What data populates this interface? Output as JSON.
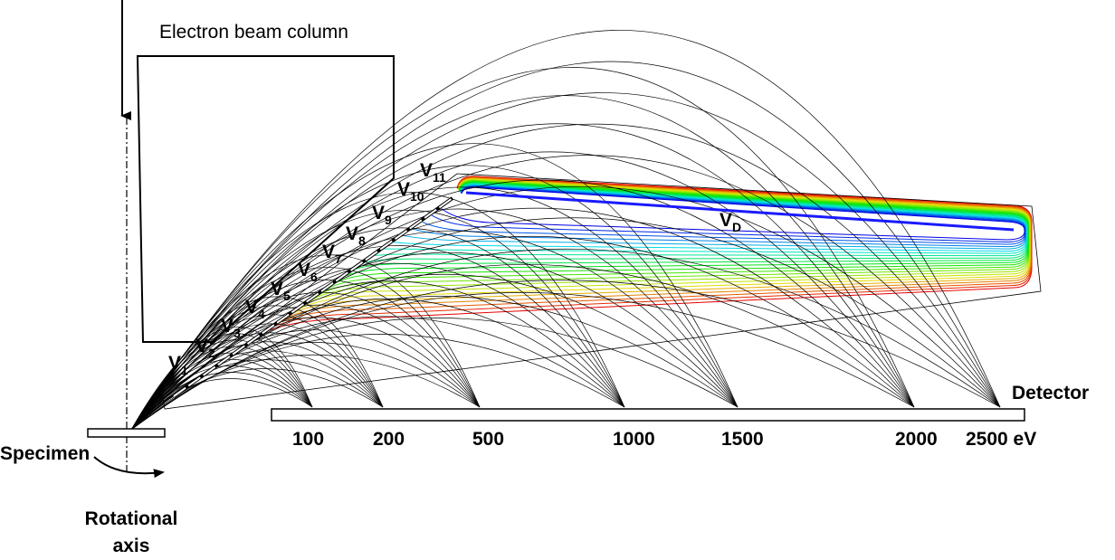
{
  "column_label": "Electron beam column",
  "electrodes": [
    {
      "symbol": "V",
      "subscript": "1"
    },
    {
      "symbol": "V",
      "subscript": "2"
    },
    {
      "symbol": "V",
      "subscript": "3"
    },
    {
      "symbol": "V",
      "subscript": "4"
    },
    {
      "symbol": "V",
      "subscript": "5"
    },
    {
      "symbol": "V",
      "subscript": "6"
    },
    {
      "symbol": "V",
      "subscript": "7"
    },
    {
      "symbol": "V",
      "subscript": "8"
    },
    {
      "symbol": "V",
      "subscript": "9"
    },
    {
      "symbol": "V",
      "subscript": "10"
    },
    {
      "symbol": "V",
      "subscript": "11"
    }
  ],
  "deflector": {
    "symbol": "V",
    "subscript": "D"
  },
  "detector": {
    "label": "Detector",
    "energies": [
      "100",
      "200",
      "500",
      "1000",
      "1500",
      "2000",
      "2500 eV"
    ]
  },
  "specimen": "Specimen",
  "rotation": {
    "line1": "Rotational",
    "line2": "axis"
  }
}
